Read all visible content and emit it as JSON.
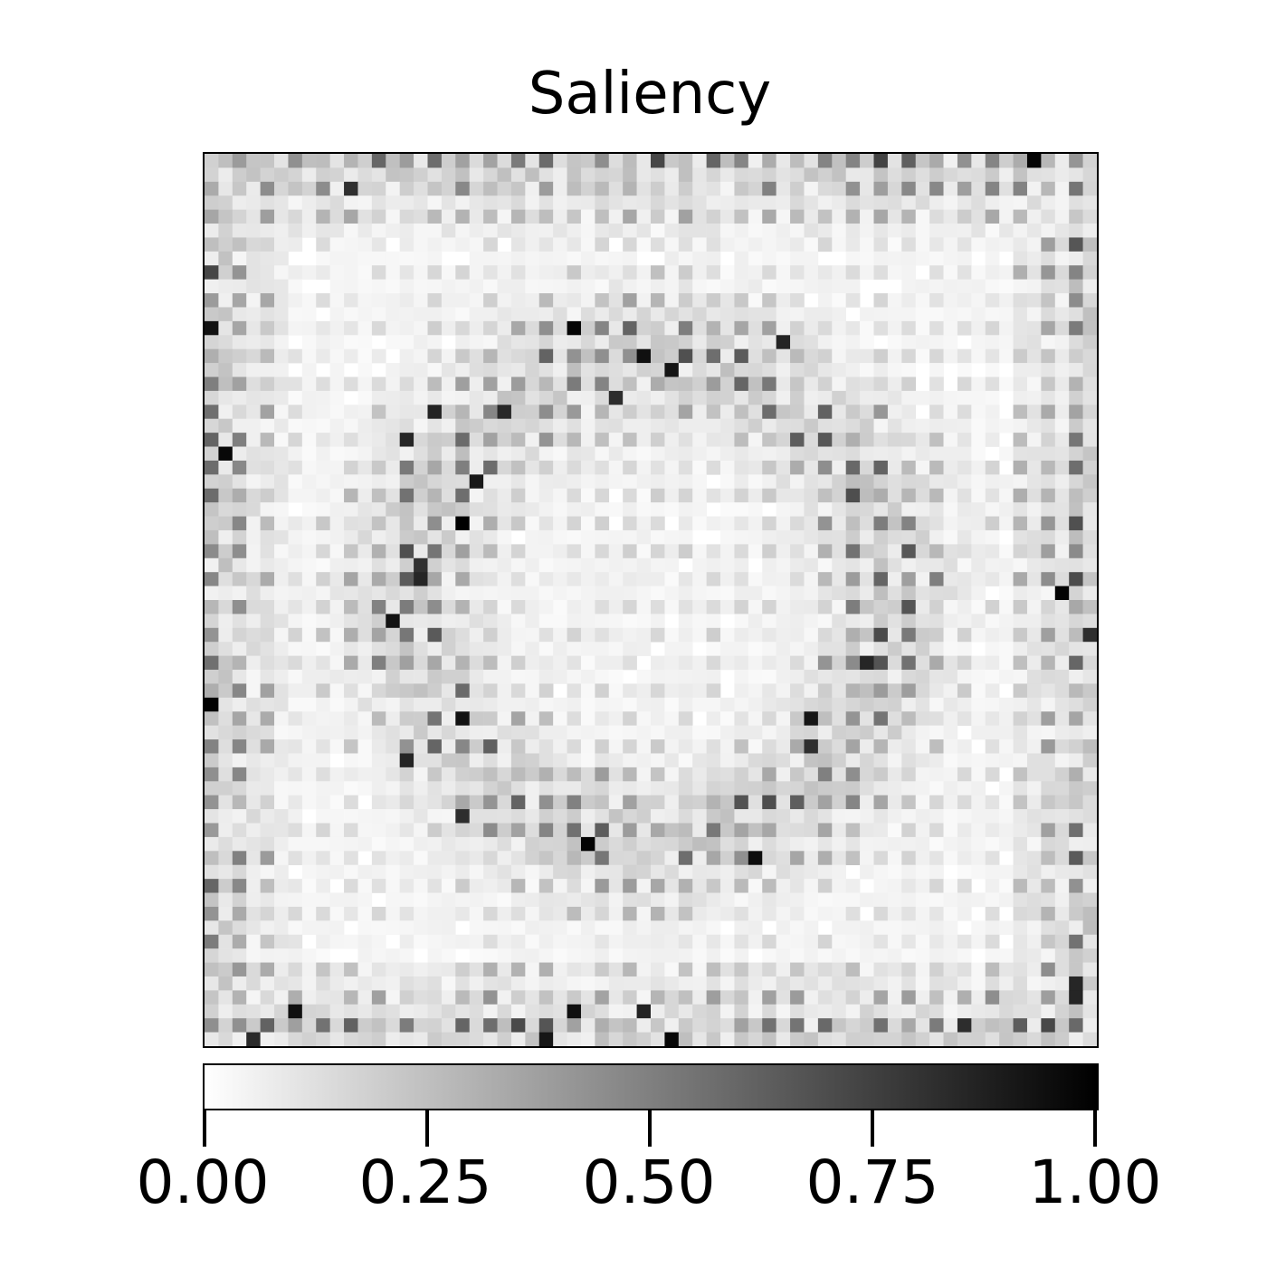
{
  "chart_data": {
    "type": "heatmap",
    "title": "Saliency",
    "xlabel": "",
    "ylabel": "",
    "axes_ticks_visible": false,
    "grid": false,
    "colormap": "Greys",
    "colormap_colors": [
      "#ffffff",
      "#000000"
    ],
    "value_range": [
      0.0,
      1.0
    ],
    "colorbar": {
      "orientation": "horizontal",
      "placement": "bottom",
      "ticks": [
        0.0,
        0.25,
        0.5,
        0.75,
        1.0
      ],
      "tick_labels": [
        "0.00",
        "0.25",
        "0.50",
        "0.75",
        "1.00"
      ]
    },
    "grid_size": [
      64,
      64
    ],
    "pattern_description_values": {
      "border_band_mean": 0.45,
      "inner_square_ring_mean": 0.1,
      "circular_ring_mean": 0.35,
      "center_mean": 0.12,
      "peak_value": 1.0
    }
  }
}
